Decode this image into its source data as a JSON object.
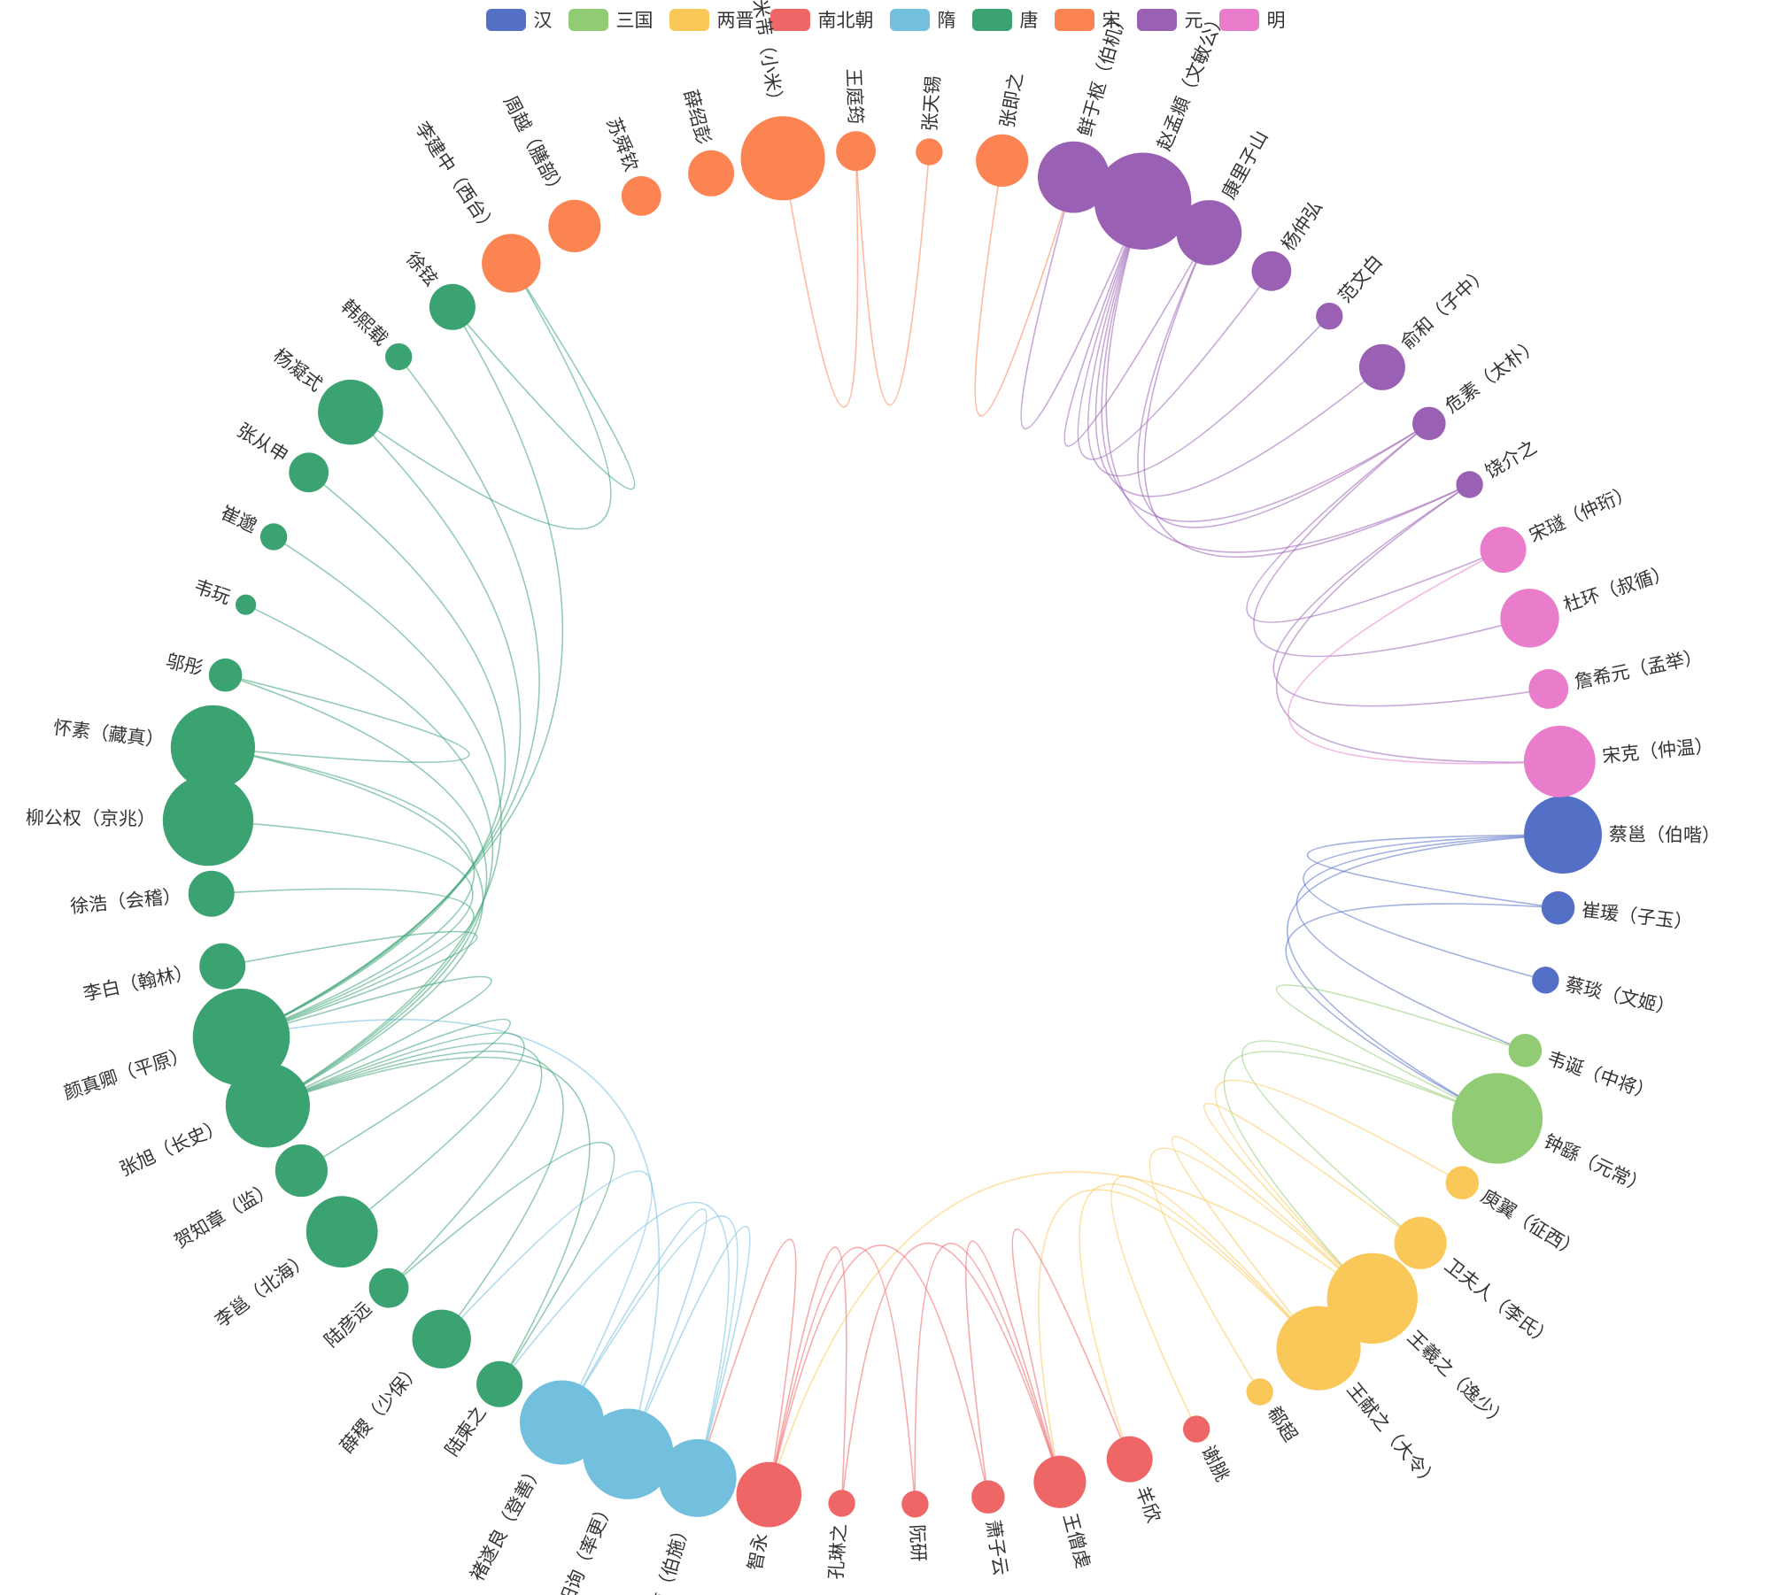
{
  "chart_data": {
    "type": "circular-graph",
    "categories": [
      {
        "name": "汉",
        "color": "#5470c6"
      },
      {
        "name": "三国",
        "color": "#91cc75"
      },
      {
        "name": "两晋",
        "color": "#fac858"
      },
      {
        "name": "南北朝",
        "color": "#ee6666"
      },
      {
        "name": "隋",
        "color": "#73c0de"
      },
      {
        "name": "唐",
        "color": "#3ba272"
      },
      {
        "name": "宋",
        "color": "#fc8452"
      },
      {
        "name": "元",
        "color": "#9a60b4"
      },
      {
        "name": "明",
        "color": "#ea7ccc"
      }
    ],
    "nodes": [
      {
        "name": "蔡邕（伯喈）",
        "category": 0,
        "value": 10
      },
      {
        "name": "崔瑗（子玉）",
        "category": 0,
        "value": 3
      },
      {
        "name": "蔡琰（文姬）",
        "category": 0,
        "value": 2
      },
      {
        "name": "韦诞（中将）",
        "category": 1,
        "value": 3
      },
      {
        "name": "钟繇（元常）",
        "category": 1,
        "value": 12
      },
      {
        "name": "庾翼（征西）",
        "category": 2,
        "value": 3
      },
      {
        "name": "卫夫人（李氏）",
        "category": 2,
        "value": 6
      },
      {
        "name": "王羲之（逸少）",
        "category": 2,
        "value": 12
      },
      {
        "name": "王献之（大令）",
        "category": 2,
        "value": 11
      },
      {
        "name": "郗超",
        "category": 2,
        "value": 2
      },
      {
        "name": "谢朓",
        "category": 3,
        "value": 2
      },
      {
        "name": "羊欣",
        "category": 3,
        "value": 5
      },
      {
        "name": "王僧虔",
        "category": 3,
        "value": 6
      },
      {
        "name": "萧子云",
        "category": 3,
        "value": 3
      },
      {
        "name": "阮研",
        "category": 3,
        "value": 2
      },
      {
        "name": "孔琳之",
        "category": 3,
        "value": 2
      },
      {
        "name": "智永",
        "category": 3,
        "value": 8
      },
      {
        "name": "虞世南（伯施）",
        "category": 4,
        "value": 10
      },
      {
        "name": "欧阳询（率更）",
        "category": 4,
        "value": 12
      },
      {
        "name": "褚遂良（登善）",
        "category": 4,
        "value": 11
      },
      {
        "name": "陆柬之",
        "category": 5,
        "value": 5
      },
      {
        "name": "薛稷（少保）",
        "category": 5,
        "value": 7
      },
      {
        "name": "陆彦远",
        "category": 5,
        "value": 4
      },
      {
        "name": "李邕（北海）",
        "category": 5,
        "value": 9
      },
      {
        "name": "贺知章（监）",
        "category": 5,
        "value": 6
      },
      {
        "name": "张旭（长史）",
        "category": 5,
        "value": 11
      },
      {
        "name": "颜真卿（平原）",
        "category": 5,
        "value": 13
      },
      {
        "name": "李白（翰林）",
        "category": 5,
        "value": 5
      },
      {
        "name": "徐浩（会稽）",
        "category": 5,
        "value": 5
      },
      {
        "name": "柳公权（京兆）",
        "category": 5,
        "value": 12
      },
      {
        "name": "怀素（藏真）",
        "category": 5,
        "value": 11
      },
      {
        "name": "邬彤",
        "category": 5,
        "value": 3
      },
      {
        "name": "韦玩",
        "category": 5,
        "value": 1
      },
      {
        "name": "崔邈",
        "category": 5,
        "value": 2
      },
      {
        "name": "张从申",
        "category": 5,
        "value": 4
      },
      {
        "name": "杨凝式",
        "category": 5,
        "value": 8
      },
      {
        "name": "韩熙载",
        "category": 5,
        "value": 2
      },
      {
        "name": "徐铉",
        "category": 5,
        "value": 5
      },
      {
        "name": "李建中（西台）",
        "category": 6,
        "value": 7
      },
      {
        "name": "周越（膳部）",
        "category": 6,
        "value": 6
      },
      {
        "name": "苏舜钦",
        "category": 6,
        "value": 4
      },
      {
        "name": "薛绍彭",
        "category": 6,
        "value": 5
      },
      {
        "name": "米芾（小米）",
        "category": 6,
        "value": 11
      },
      {
        "name": "王庭筠",
        "category": 6,
        "value": 4
      },
      {
        "name": "张天锡",
        "category": 6,
        "value": 2
      },
      {
        "name": "张即之",
        "category": 6,
        "value": 6
      },
      {
        "name": "鲜于枢（伯机）",
        "category": 7,
        "value": 9
      },
      {
        "name": "赵孟頫（文敏公）",
        "category": 7,
        "value": 13
      },
      {
        "name": "康里子山",
        "category": 7,
        "value": 8
      },
      {
        "name": "杨仲弘",
        "category": 7,
        "value": 4
      },
      {
        "name": "范文白",
        "category": 7,
        "value": 2
      },
      {
        "name": "俞和（子中）",
        "category": 7,
        "value": 5
      },
      {
        "name": "危素（太朴）",
        "category": 7,
        "value": 3
      },
      {
        "name": "饶介之",
        "category": 7,
        "value": 2
      },
      {
        "name": "宋璲（仲珩）",
        "category": 8,
        "value": 5
      },
      {
        "name": "杜环（叔循）",
        "category": 8,
        "value": 7
      },
      {
        "name": "詹希元（孟举）",
        "category": 8,
        "value": 4
      },
      {
        "name": "宋克（仲温）",
        "category": 8,
        "value": 9
      }
    ],
    "links": [
      [
        "蔡邕（伯喈）",
        "崔瑗（子玉）"
      ],
      [
        "蔡邕（伯喈）",
        "蔡琰（文姬）"
      ],
      [
        "蔡邕（伯喈）",
        "钟繇（元常）"
      ],
      [
        "蔡邕（伯喈）",
        "韦诞（中将）"
      ],
      [
        "崔瑗（子玉）",
        "钟繇（元常）"
      ],
      [
        "韦诞（中将）",
        "钟繇（元常）"
      ],
      [
        "钟繇（元常）",
        "卫夫人（李氏）"
      ],
      [
        "钟繇（元常）",
        "王羲之（逸少）"
      ],
      [
        "卫夫人（李氏）",
        "王羲之（逸少）"
      ],
      [
        "庾翼（征西）",
        "王羲之（逸少）"
      ],
      [
        "王羲之（逸少）",
        "王献之（大令）"
      ],
      [
        "王羲之（逸少）",
        "郗超"
      ],
      [
        "王羲之（逸少）",
        "智永"
      ],
      [
        "王献之（大令）",
        "羊欣"
      ],
      [
        "王献之（大令）",
        "谢朓"
      ],
      [
        "王献之（大令）",
        "王僧虔"
      ],
      [
        "羊欣",
        "王僧虔"
      ],
      [
        "王僧虔",
        "萧子云"
      ],
      [
        "王僧虔",
        "阮研"
      ],
      [
        "王僧虔",
        "孔琳之"
      ],
      [
        "萧子云",
        "智永"
      ],
      [
        "阮研",
        "智永"
      ],
      [
        "孔琳之",
        "智永"
      ],
      [
        "智永",
        "虞世南（伯施）"
      ],
      [
        "虞世南（伯施）",
        "欧阳询（率更）"
      ],
      [
        "虞世南（伯施）",
        "褚遂良（登善）"
      ],
      [
        "虞世南（伯施）",
        "陆柬之"
      ],
      [
        "欧阳询（率更）",
        "褚遂良（登善）"
      ],
      [
        "欧阳询（率更）",
        "颜真卿（平原）"
      ],
      [
        "褚遂良（登善）",
        "薛稷（少保）"
      ],
      [
        "陆柬之",
        "陆彦远"
      ],
      [
        "陆柬之",
        "张旭（长史）"
      ],
      [
        "陆彦远",
        "张旭（长史）"
      ],
      [
        "薛稷（少保）",
        "张旭（长史）"
      ],
      [
        "李邕（北海）",
        "张旭（长史）"
      ],
      [
        "贺知章（监）",
        "张旭（长史）"
      ],
      [
        "张旭（长史）",
        "颜真卿（平原）"
      ],
      [
        "张旭（长史）",
        "怀素（藏真）"
      ],
      [
        "张旭（长史）",
        "崔邈"
      ],
      [
        "张旭（长史）",
        "韦玩"
      ],
      [
        "张旭（长史）",
        "邬彤"
      ],
      [
        "颜真卿（平原）",
        "柳公权（京兆）"
      ],
      [
        "颜真卿（平原）",
        "怀素（藏真）"
      ],
      [
        "颜真卿（平原）",
        "徐浩（会稽）"
      ],
      [
        "颜真卿（平原）",
        "李白（翰林）"
      ],
      [
        "颜真卿（平原）",
        "张从申"
      ],
      [
        "颜真卿（平原）",
        "杨凝式"
      ],
      [
        "颜真卿（平原）",
        "韩熙载"
      ],
      [
        "颜真卿（平原）",
        "徐铉"
      ],
      [
        "邬彤",
        "怀素（藏真）"
      ],
      [
        "杨凝式",
        "李建中（西台）"
      ],
      [
        "徐铉",
        "李建中（西台）"
      ],
      [
        "王庭筠",
        "米芾（小米）"
      ],
      [
        "张天锡",
        "王庭筠"
      ],
      [
        "张即之",
        "鲜于枢（伯机）"
      ],
      [
        "鲜于枢（伯机）",
        "赵孟頫（文敏公）"
      ],
      [
        "赵孟頫（文敏公）",
        "康里子山"
      ],
      [
        "赵孟頫（文敏公）",
        "杨仲弘"
      ],
      [
        "赵孟頫（文敏公）",
        "范文白"
      ],
      [
        "赵孟頫（文敏公）",
        "俞和（子中）"
      ],
      [
        "赵孟頫（文敏公）",
        "危素（太朴）"
      ],
      [
        "赵孟頫（文敏公）",
        "饶介之"
      ],
      [
        "康里子山",
        "饶介之"
      ],
      [
        "康里子山",
        "危素（太朴）"
      ],
      [
        "危素（太朴）",
        "宋璲（仲珩）"
      ],
      [
        "危素（太朴）",
        "杜环（叔循）"
      ],
      [
        "饶介之",
        "宋克（仲温）"
      ],
      [
        "饶介之",
        "詹希元（孟举）"
      ],
      [
        "宋璲（仲珩）",
        "宋克（仲温）"
      ]
    ]
  }
}
